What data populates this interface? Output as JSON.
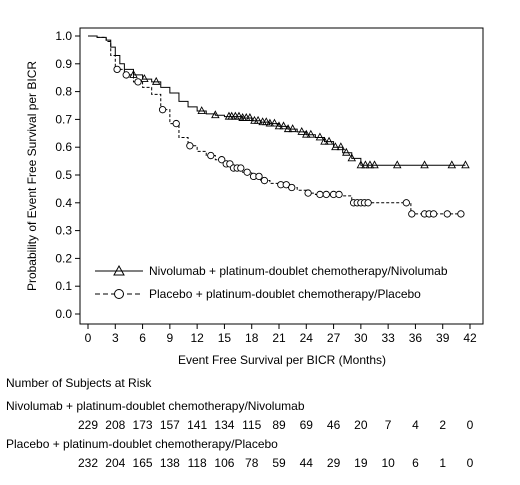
{
  "chart_data": {
    "type": "line",
    "title": "",
    "xlabel": "Event Free Survival per BICR (Months)",
    "ylabel": "Probability of Event Free Survival per BICR",
    "xlim": [
      0,
      42
    ],
    "ylim": [
      0.0,
      1.0
    ],
    "x_ticks": [
      0,
      3,
      6,
      9,
      12,
      15,
      18,
      21,
      24,
      27,
      30,
      33,
      36,
      39,
      42
    ],
    "y_ticks": [
      "0.0",
      "0.1",
      "0.2",
      "0.3",
      "0.4",
      "0.5",
      "0.6",
      "0.7",
      "0.8",
      "0.9",
      "1.0"
    ],
    "legend_position": "bottom-left",
    "series": [
      {
        "name": "Nivolumab + platinum-doublet chemotherapy/Nivolumab",
        "line_style": "solid",
        "marker": "triangle",
        "steps": [
          [
            0,
            1.0
          ],
          [
            1,
            0.995
          ],
          [
            2,
            0.985
          ],
          [
            2.5,
            0.96
          ],
          [
            3,
            0.93
          ],
          [
            3.5,
            0.9
          ],
          [
            4,
            0.88
          ],
          [
            5,
            0.86
          ],
          [
            6,
            0.845
          ],
          [
            7,
            0.835
          ],
          [
            8,
            0.815
          ],
          [
            9,
            0.795
          ],
          [
            10,
            0.765
          ],
          [
            11,
            0.745
          ],
          [
            12,
            0.73
          ],
          [
            13,
            0.72
          ],
          [
            14,
            0.715
          ],
          [
            15,
            0.71
          ],
          [
            17,
            0.705
          ],
          [
            18,
            0.695
          ],
          [
            19,
            0.69
          ],
          [
            20,
            0.685
          ],
          [
            21,
            0.675
          ],
          [
            22,
            0.665
          ],
          [
            23,
            0.655
          ],
          [
            24,
            0.645
          ],
          [
            25,
            0.635
          ],
          [
            26,
            0.62
          ],
          [
            27,
            0.6
          ],
          [
            28,
            0.58
          ],
          [
            29,
            0.56
          ],
          [
            30,
            0.535
          ],
          [
            41.5,
            0.535
          ]
        ],
        "censor_x": [
          5,
          6.2,
          7.5,
          12.5,
          14,
          15.5,
          15.8,
          16.2,
          16.6,
          17,
          17.4,
          17.8,
          18.3,
          18.7,
          19.2,
          19.6,
          20,
          20.5,
          21,
          21.5,
          22,
          22.5,
          23.5,
          24,
          24.5,
          25.5,
          26,
          26.5,
          27.2,
          27.8,
          28.4,
          29,
          30,
          30.5,
          31,
          31.5,
          34,
          37,
          40,
          41.5
        ]
      },
      {
        "name": "Placebo + platinum-doublet chemotherapy/Placebo",
        "line_style": "dashed",
        "marker": "circle",
        "steps": [
          [
            0,
            1.0
          ],
          [
            1,
            0.995
          ],
          [
            2,
            0.98
          ],
          [
            2.5,
            0.93
          ],
          [
            3,
            0.88
          ],
          [
            4,
            0.86
          ],
          [
            5,
            0.835
          ],
          [
            6,
            0.815
          ],
          [
            7,
            0.79
          ],
          [
            8,
            0.735
          ],
          [
            9,
            0.685
          ],
          [
            10,
            0.635
          ],
          [
            11,
            0.605
          ],
          [
            12,
            0.585
          ],
          [
            13,
            0.57
          ],
          [
            14,
            0.555
          ],
          [
            15,
            0.54
          ],
          [
            16,
            0.525
          ],
          [
            17,
            0.51
          ],
          [
            18,
            0.495
          ],
          [
            19,
            0.48
          ],
          [
            20,
            0.47
          ],
          [
            21,
            0.465
          ],
          [
            22,
            0.455
          ],
          [
            23,
            0.445
          ],
          [
            24,
            0.435
          ],
          [
            25,
            0.43
          ],
          [
            28,
            0.425
          ],
          [
            29,
            0.4
          ],
          [
            35,
            0.4
          ],
          [
            35.5,
            0.36
          ],
          [
            41,
            0.36
          ]
        ],
        "censor_x": [
          3.2,
          4.2,
          5.5,
          8.2,
          9.7,
          11.2,
          13.5,
          14.7,
          15.2,
          15.6,
          16,
          16.4,
          16.8,
          17.5,
          18.2,
          18.8,
          19.4,
          21.2,
          21.8,
          22.4,
          24.2,
          25.5,
          26.2,
          27,
          27.6,
          29.2,
          29.6,
          30,
          30.4,
          30.8,
          35,
          35.6,
          37,
          37.5,
          38,
          39.5,
          41
        ]
      }
    ],
    "risk_table": {
      "heading": "Number of Subjects at Risk",
      "times": [
        0,
        3,
        6,
        9,
        12,
        15,
        18,
        21,
        24,
        27,
        30,
        33,
        36,
        39,
        42
      ],
      "rows": [
        {
          "label": "Nivolumab + platinum-doublet chemotherapy/Nivolumab",
          "counts": [
            "229",
            "208",
            "173",
            "157",
            "141",
            "134",
            "115",
            "89",
            "69",
            "46",
            "20",
            "7",
            "4",
            "2",
            "0"
          ]
        },
        {
          "label": "Placebo + platinum-doublet chemotherapy/Placebo",
          "counts": [
            "232",
            "204",
            "165",
            "138",
            "118",
            "106",
            "78",
            "59",
            "44",
            "29",
            "19",
            "10",
            "6",
            "1",
            "0"
          ]
        }
      ]
    }
  }
}
